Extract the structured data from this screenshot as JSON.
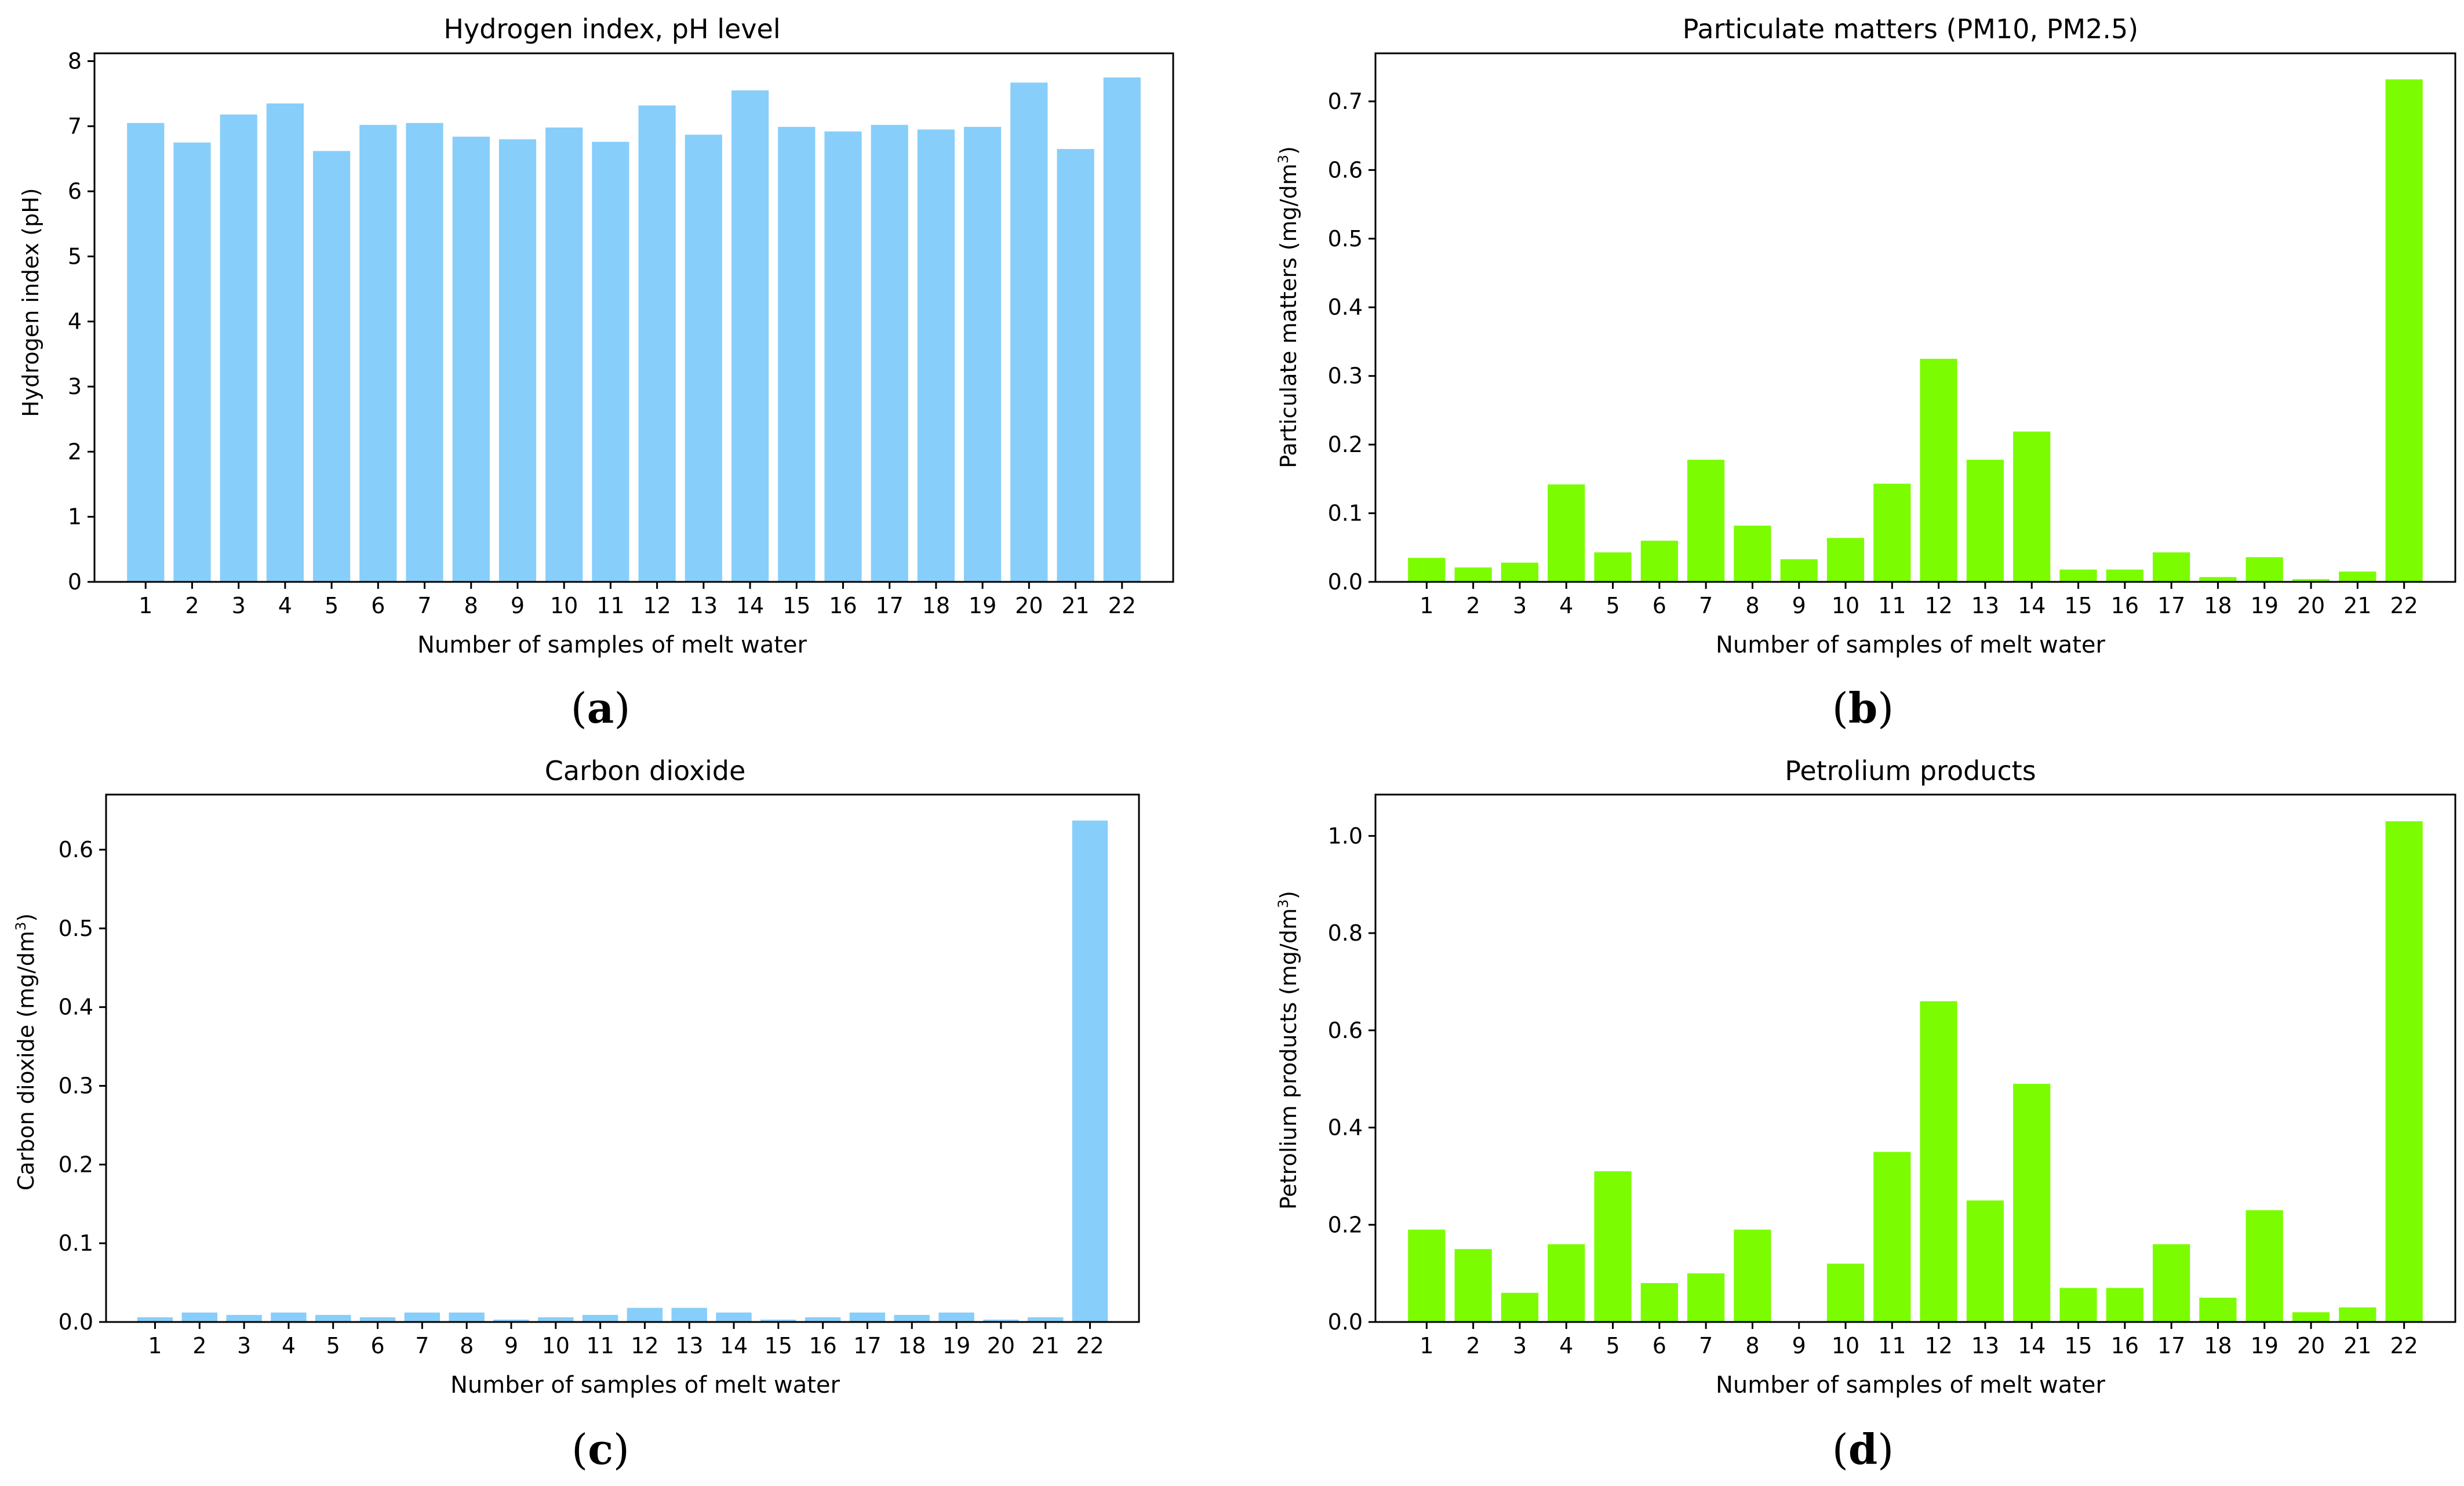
{
  "colors": {
    "blue": "#87CEFA",
    "green": "#7CFC00",
    "axis": "#000000"
  },
  "chart_data": [
    {
      "type": "bar",
      "title": "Hydrogen index, pH level",
      "xlabel": "Number of samples of melt water",
      "ylabel": "Hydrogen index (pH)",
      "ylabel_sup": "",
      "ylabel_tail": "",
      "caption_letter": "a",
      "color": "#87CEFA",
      "categories": [
        "1",
        "2",
        "3",
        "4",
        "5",
        "6",
        "7",
        "8",
        "9",
        "10",
        "11",
        "12",
        "13",
        "14",
        "15",
        "16",
        "17",
        "18",
        "19",
        "20",
        "21",
        "22"
      ],
      "values": [
        7.05,
        6.75,
        7.18,
        7.35,
        6.62,
        7.02,
        7.05,
        6.84,
        6.8,
        6.98,
        6.76,
        7.32,
        6.87,
        7.55,
        6.99,
        6.92,
        7.02,
        6.95,
        6.99,
        7.67,
        6.65,
        7.75
      ],
      "ylim": [
        0,
        8.12
      ],
      "yticks": [
        "0",
        "1",
        "2",
        "3",
        "4",
        "5",
        "6",
        "7",
        "8"
      ],
      "ytick_values": [
        0,
        1,
        2,
        3,
        4,
        5,
        6,
        7,
        8
      ]
    },
    {
      "type": "bar",
      "title": "Particulate matters (PM10, PM2.5)",
      "xlabel": "Number of samples of melt water",
      "ylabel": "Particulate matters (mg/dm",
      "ylabel_sup": "3",
      "ylabel_tail": ")",
      "caption_letter": "b",
      "color": "#7CFC00",
      "categories": [
        "1",
        "2",
        "3",
        "4",
        "5",
        "6",
        "7",
        "8",
        "9",
        "10",
        "11",
        "12",
        "13",
        "14",
        "15",
        "16",
        "17",
        "18",
        "19",
        "20",
        "21",
        "22"
      ],
      "values": [
        0.035,
        0.021,
        0.028,
        0.142,
        0.043,
        0.06,
        0.178,
        0.082,
        0.033,
        0.064,
        0.143,
        0.325,
        0.178,
        0.219,
        0.018,
        0.018,
        0.043,
        0.007,
        0.036,
        0.004,
        0.015,
        0.732
      ],
      "ylim": [
        0,
        0.77
      ],
      "yticks": [
        "0.0",
        "0.1",
        "0.2",
        "0.3",
        "0.4",
        "0.5",
        "0.6",
        "0.7"
      ],
      "ytick_values": [
        0,
        0.1,
        0.2,
        0.3,
        0.4,
        0.5,
        0.6,
        0.7
      ]
    },
    {
      "type": "bar",
      "title": "Carbon dioxide",
      "xlabel": "Number of samples of melt water",
      "ylabel": "Carbon dioxide (mg/dm",
      "ylabel_sup": "3",
      "ylabel_tail": ")",
      "caption_letter": "c",
      "color": "#87CEFA",
      "categories": [
        "1",
        "2",
        "3",
        "4",
        "5",
        "6",
        "7",
        "8",
        "9",
        "10",
        "11",
        "12",
        "13",
        "14",
        "15",
        "16",
        "17",
        "18",
        "19",
        "20",
        "21",
        "22"
      ],
      "values": [
        0.006,
        0.012,
        0.009,
        0.012,
        0.009,
        0.006,
        0.012,
        0.012,
        0.003,
        0.006,
        0.009,
        0.018,
        0.018,
        0.012,
        0.003,
        0.006,
        0.012,
        0.009,
        0.012,
        0.003,
        0.006,
        0.637
      ],
      "ylim": [
        0,
        0.67
      ],
      "yticks": [
        "0.0",
        "0.1",
        "0.2",
        "0.3",
        "0.4",
        "0.5",
        "0.6"
      ],
      "ytick_values": [
        0,
        0.1,
        0.2,
        0.3,
        0.4,
        0.5,
        0.6
      ]
    },
    {
      "type": "bar",
      "title": "Petrolium products",
      "xlabel": "Number of samples of melt water",
      "ylabel": "Petrolium products (mg/dm",
      "ylabel_sup": "3",
      "ylabel_tail": ")",
      "caption_letter": "d",
      "color": "#7CFC00",
      "categories": [
        "1",
        "2",
        "3",
        "4",
        "5",
        "6",
        "7",
        "8",
        "9",
        "10",
        "11",
        "12",
        "13",
        "14",
        "15",
        "16",
        "17",
        "18",
        "19",
        "20",
        "21",
        "22"
      ],
      "values": [
        0.19,
        0.15,
        0.06,
        0.16,
        0.31,
        0.08,
        0.1,
        0.19,
        0.0,
        0.12,
        0.35,
        0.66,
        0.25,
        0.49,
        0.07,
        0.07,
        0.16,
        0.05,
        0.23,
        0.02,
        0.03,
        1.03
      ],
      "ylim": [
        0,
        1.085
      ],
      "yticks": [
        "0.0",
        "0.2",
        "0.4",
        "0.6",
        "0.8",
        "1.0"
      ],
      "ytick_values": [
        0,
        0.2,
        0.4,
        0.6,
        0.8,
        1.0
      ]
    }
  ]
}
